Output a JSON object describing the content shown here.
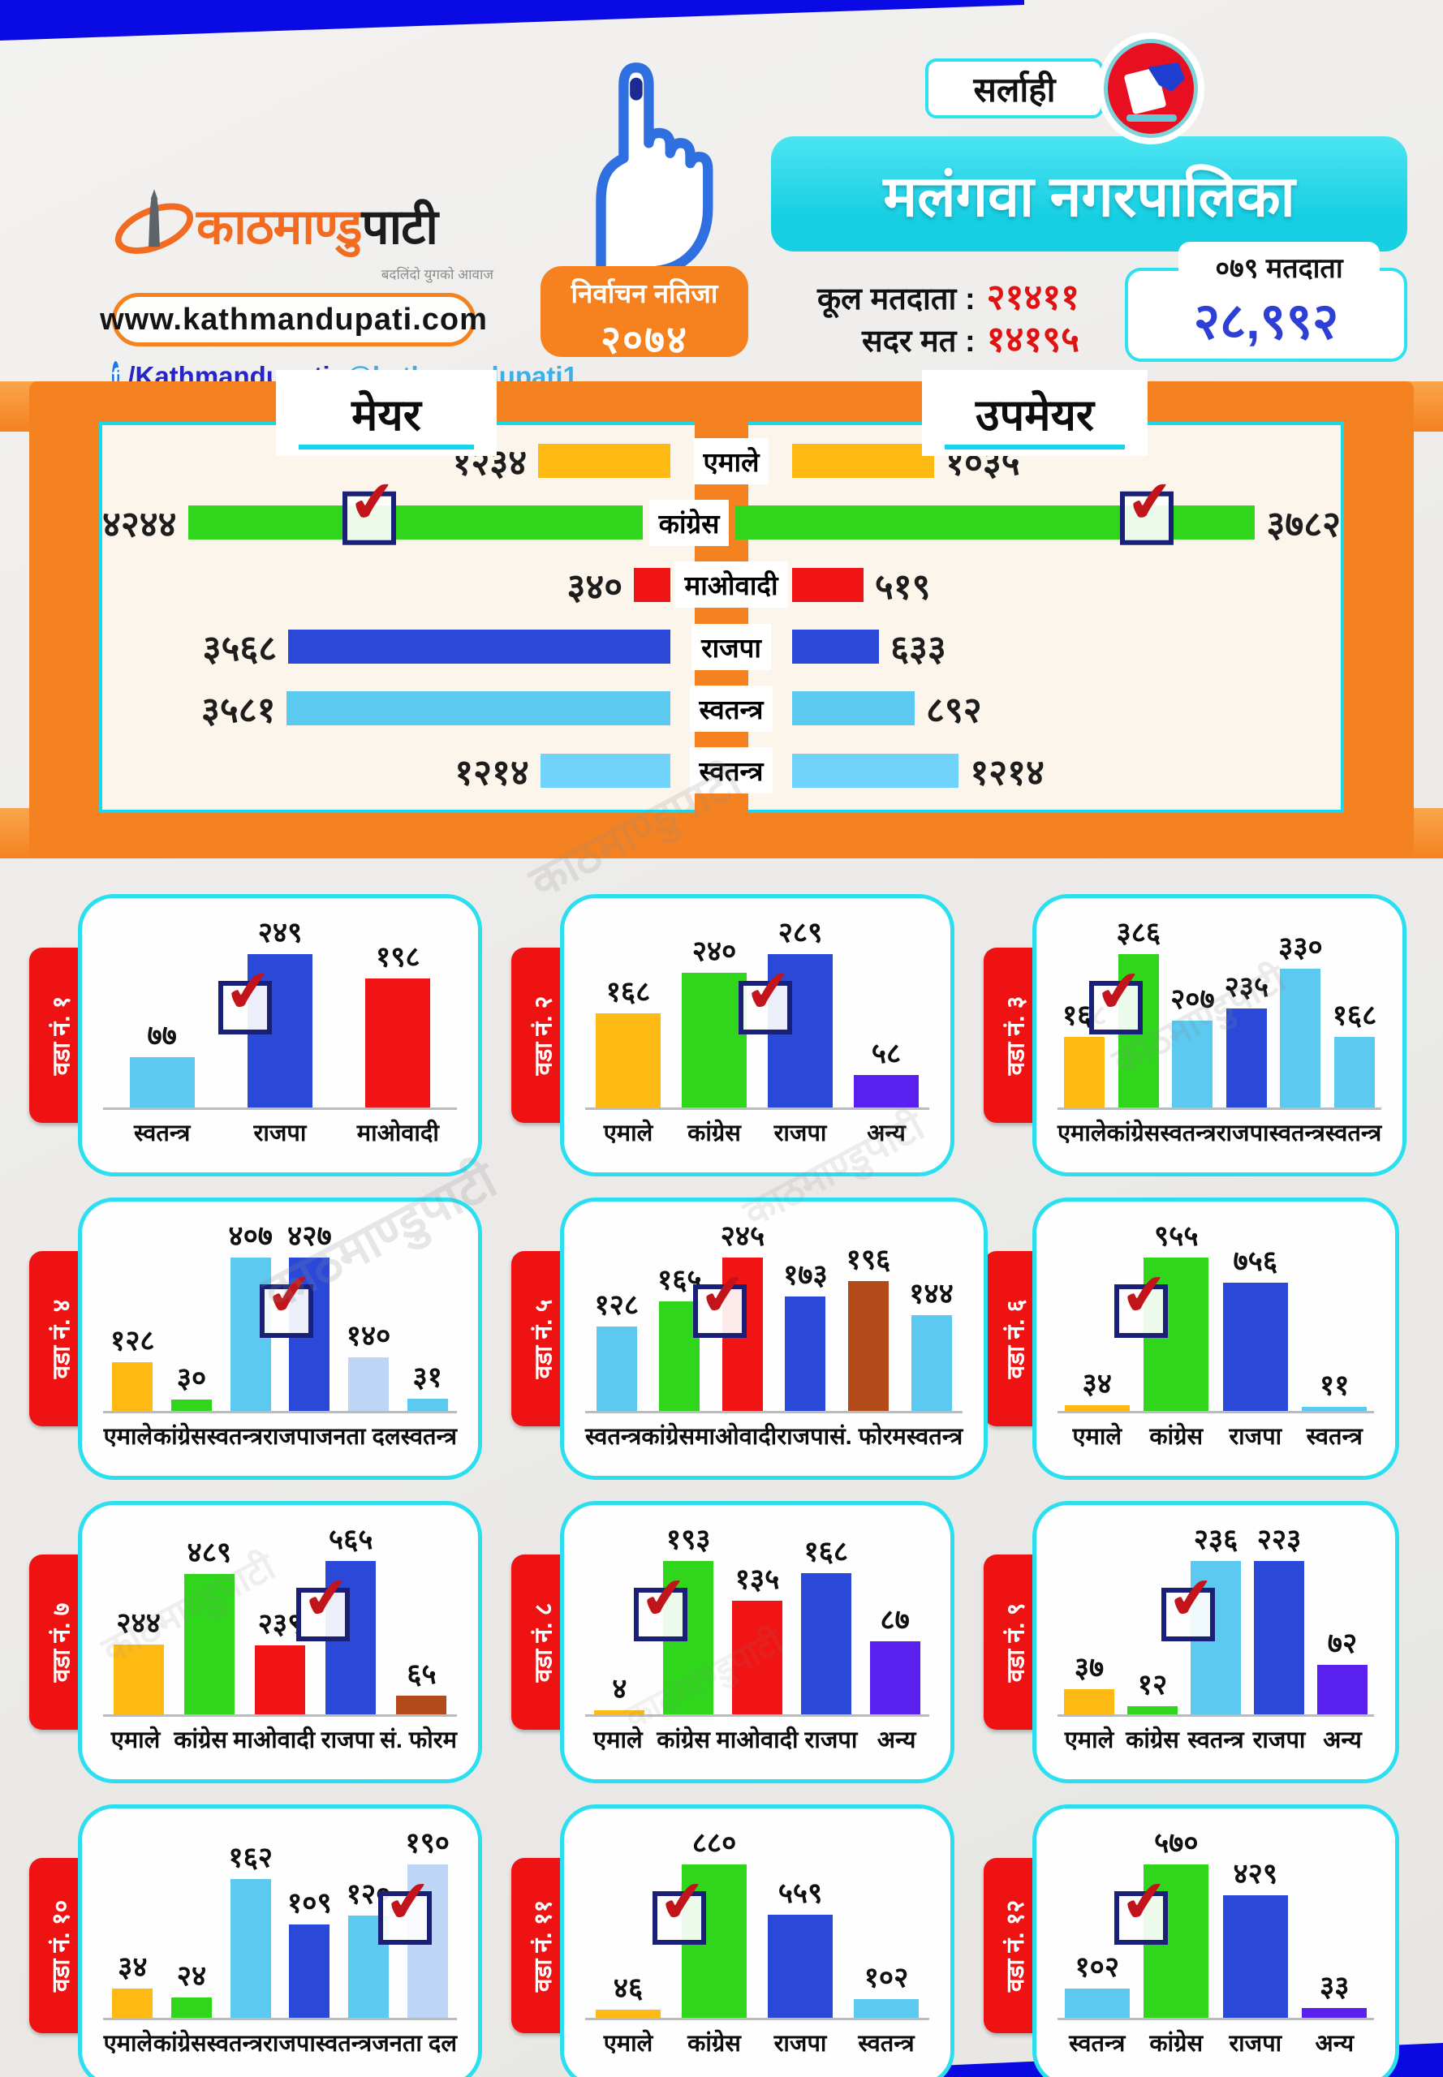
{
  "header": {
    "brand": {
      "logo_part1": "काठमाण्डु",
      "logo_part2": "पाटी",
      "tagline": "बदलिंदो युगको आवाज",
      "website": "www.kathmandupati.com",
      "facebook_handle": "/Kathmandupati",
      "twitter_handle": "@kathmandupati1"
    },
    "election_badge": {
      "line1": "निर्वाचन नतिजा",
      "line2": "२०७४"
    },
    "district": "सर्लाही",
    "municipality": "मलंगवा नगरपालिका",
    "stats": {
      "total_voters_label": "कूल मतदाता :",
      "total_voters": "२१४११",
      "valid_votes_label": "सदर मत :",
      "valid_votes": "१४१९५",
      "voters_079_label": "०७९ मतदाता",
      "voters_079": "२८,९९२"
    }
  },
  "colors": {
    "accent_orange": "#f5821f",
    "cyan_border": "#19d8ea",
    "tab_red": "#ee1212",
    "top_band_blue": "#0a0ae4",
    "bar": {
      "yellow": "#ffb913",
      "green": "#2fd61c",
      "red": "#f01414",
      "blue": "#2a49d9",
      "sky": "#5bc9f0",
      "sky_light": "#6fd3fa",
      "pale": "#bdd6f6",
      "purple": "#5a21ee",
      "brown": "#b34a19"
    }
  },
  "chart_data": [
    {
      "type": "bar",
      "orientation": "horizontal",
      "title": "मेयर",
      "max": 4244,
      "winner_index": 1,
      "categories": [
        "एमाले",
        "कांग्रेस",
        "माओवादी",
        "राजपा",
        "स्वतन्त्र",
        "स्वतन्त्र"
      ],
      "values": [
        1234,
        4244,
        340,
        3568,
        3581,
        1214
      ],
      "value_labels": [
        "१२३४",
        "४२४४",
        "३४०",
        "३५६८",
        "३५८१",
        "१२१४"
      ],
      "colors": [
        "yellow",
        "green",
        "red",
        "blue",
        "sky",
        "sky_light"
      ]
    },
    {
      "type": "bar",
      "orientation": "horizontal",
      "title": "उपमेयर",
      "max": 3782,
      "winner_index": 1,
      "categories": [
        "एमाले",
        "कांग्रेस",
        "माओवादी",
        "राजपा",
        "स्वतन्त्र",
        "स्वतन्त्र"
      ],
      "values": [
        1035,
        3782,
        519,
        633,
        892,
        1214
      ],
      "value_labels": [
        "१०३५",
        "३७८२",
        "५१९",
        "६३३",
        "८९२",
        "१२१४"
      ],
      "colors": [
        "yellow",
        "green",
        "red",
        "blue",
        "sky",
        "sky_light"
      ]
    },
    {
      "type": "bar",
      "title": "वडा नं. १",
      "winner_index": 1,
      "categories": [
        "स्वतन्त्र",
        "राजपा",
        "माओवादी"
      ],
      "values": [
        77,
        249,
        198
      ],
      "value_labels": [
        "७७",
        "२४९",
        "१९८"
      ],
      "colors": [
        "sky",
        "blue",
        "red"
      ]
    },
    {
      "type": "bar",
      "title": "वडा नं. २",
      "winner_index": 2,
      "categories": [
        "एमाले",
        "कांग्रेस",
        "राजपा",
        "अन्य"
      ],
      "values": [
        168,
        240,
        289,
        58
      ],
      "value_labels": [
        "१६८",
        "२४०",
        "२८९",
        "५८"
      ],
      "colors": [
        "yellow",
        "green",
        "blue",
        "purple"
      ]
    },
    {
      "type": "bar",
      "title": "वडा नं. ३",
      "winner_index": 1,
      "categories": [
        "एमाले",
        "कांग्रेस",
        "स्वतन्त्र",
        "राजपा",
        "स्वतन्त्र",
        "स्वतन्त्र"
      ],
      "values": [
        168,
        386,
        207,
        235,
        330,
        168
      ],
      "value_labels": [
        "१६८",
        "३८६",
        "२०७",
        "२३५",
        "३३०",
        "१६८"
      ],
      "colors": [
        "yellow",
        "green",
        "sky",
        "blue",
        "sky",
        "sky"
      ]
    },
    {
      "type": "bar",
      "title": "वडा नं. ४",
      "winner_index": 3,
      "categories": [
        "एमाले",
        "कांग्रेस",
        "स्वतन्त्र",
        "राजपा",
        "जनता दल",
        "स्वतन्त्र"
      ],
      "values": [
        128,
        30,
        407,
        427,
        140,
        31
      ],
      "value_labels": [
        "१२८",
        "३०",
        "४०७",
        "४२७",
        "१४०",
        "३१"
      ],
      "colors": [
        "yellow",
        "green",
        "sky",
        "blue",
        "pale",
        "sky"
      ]
    },
    {
      "type": "bar",
      "title": "वडा नं. ५",
      "winner_index": 2,
      "categories": [
        "स्वतन्त्र",
        "कांग्रेस",
        "माओवादी",
        "राजपा",
        "सं. फोरम",
        "स्वतन्त्र"
      ],
      "values": [
        128,
        165,
        245,
        173,
        196,
        144
      ],
      "value_labels": [
        "१२८",
        "१६५",
        "२४५",
        "१७३",
        "१९६",
        "१४४"
      ],
      "colors": [
        "sky",
        "green",
        "red",
        "blue",
        "brown",
        "sky"
      ]
    },
    {
      "type": "bar",
      "title": "वडा नं. ६",
      "winner_index": 1,
      "categories": [
        "एमाले",
        "कांग्रेस",
        "राजपा",
        "स्वतन्त्र"
      ],
      "values": [
        34,
        955,
        756,
        11
      ],
      "value_labels": [
        "३४",
        "९५५",
        "७५६",
        "११"
      ],
      "colors": [
        "yellow",
        "green",
        "blue",
        "sky"
      ]
    },
    {
      "type": "bar",
      "title": "वडा नं. ७",
      "winner_index": 3,
      "categories": [
        "एमाले",
        "कांग्रेस",
        "माओवादी",
        "राजपा",
        "सं. फोरम"
      ],
      "values": [
        244,
        489,
        239,
        565,
        65
      ],
      "value_labels": [
        "२४४",
        "४८९",
        "२३९",
        "५६५",
        "६५"
      ],
      "colors": [
        "yellow",
        "green",
        "red",
        "blue",
        "brown"
      ]
    },
    {
      "type": "bar",
      "title": "वडा नं. ८",
      "winner_index": 1,
      "categories": [
        "एमाले",
        "कांग्रेस",
        "माओवादी",
        "राजपा",
        "अन्य"
      ],
      "values": [
        4,
        193,
        135,
        168,
        87
      ],
      "value_labels": [
        "४",
        "१९३",
        "१३५",
        "१६८",
        "८७"
      ],
      "colors": [
        "yellow",
        "green",
        "red",
        "blue",
        "purple"
      ]
    },
    {
      "type": "bar",
      "title": "वडा नं. ९",
      "winner_index": 2,
      "categories": [
        "एमाले",
        "कांग्रेस",
        "स्वतन्त्र",
        "राजपा",
        "अन्य"
      ],
      "values": [
        37,
        12,
        236,
        223,
        72
      ],
      "value_labels": [
        "३७",
        "१२",
        "२३६",
        "२२३",
        "७२"
      ],
      "colors": [
        "yellow",
        "green",
        "sky",
        "blue",
        "purple"
      ]
    },
    {
      "type": "bar",
      "title": "वडा नं. १०",
      "winner_index": 5,
      "categories": [
        "एमाले",
        "कांग्रेस",
        "स्वतन्त्र",
        "राजपा",
        "स्वतन्त्र",
        "जनता दल"
      ],
      "values": [
        34,
        24,
        162,
        109,
        120,
        190
      ],
      "value_labels": [
        "३४",
        "२४",
        "१६२",
        "१०९",
        "१२०",
        "१९०"
      ],
      "colors": [
        "yellow",
        "green",
        "sky",
        "blue",
        "sky",
        "pale"
      ]
    },
    {
      "type": "bar",
      "title": "वडा नं. ११",
      "winner_index": 1,
      "categories": [
        "एमाले",
        "कांग्रेस",
        "राजपा",
        "स्वतन्त्र"
      ],
      "values": [
        46,
        880,
        559,
        102
      ],
      "value_labels": [
        "४६",
        "८८०",
        "५५९",
        "१०२"
      ],
      "colors": [
        "yellow",
        "green",
        "blue",
        "sky"
      ]
    },
    {
      "type": "bar",
      "title": "वडा नं. १२",
      "winner_index": 1,
      "categories": [
        "स्वतन्त्र",
        "कांग्रेस",
        "राजपा",
        "अन्य"
      ],
      "values": [
        102,
        570,
        429,
        33
      ],
      "value_labels": [
        "१०२",
        "५७०",
        "४२९",
        "३३"
      ],
      "colors": [
        "sky",
        "green",
        "blue",
        "purple"
      ]
    }
  ]
}
